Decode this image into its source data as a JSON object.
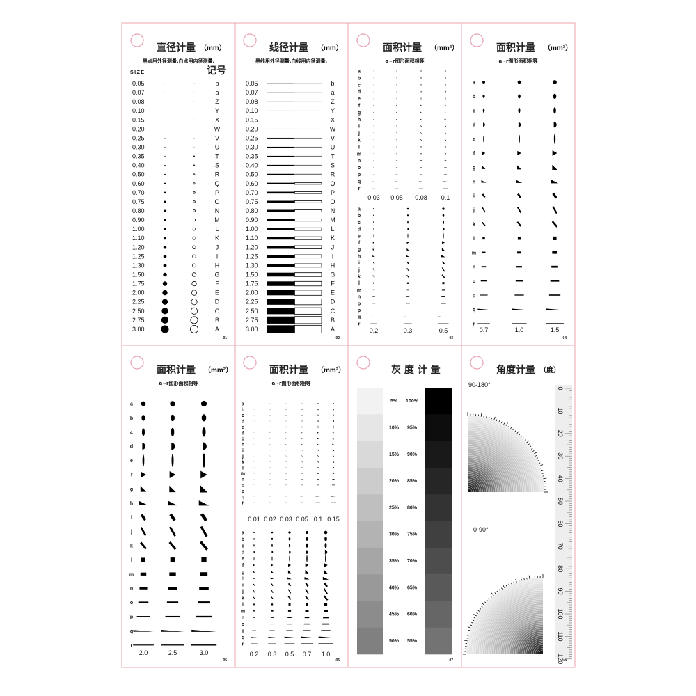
{
  "colors": {
    "frame": "#e8a4ac",
    "marker_circle": "#e8a0b0",
    "ink": "#000000"
  },
  "panels": [
    {
      "page": "01",
      "title": "直径计量",
      "unit": "（mm）",
      "subtitle": "黑点用外径测量,白点用内径测量.",
      "size_header": "SIZE",
      "code_header": "记号",
      "sizes": [
        "0.05",
        "0.07",
        "0.08",
        "0.10",
        "0.15",
        "0.20",
        "0.25",
        "0.30",
        "0.35",
        "0.40",
        "0.50",
        "0.60",
        "0.70",
        "0.75",
        "0.80",
        "0.90",
        "1.00",
        "1.10",
        "1.20",
        "1.25",
        "1.30",
        "1.50",
        "1.75",
        "2.00",
        "2.25",
        "2.50",
        "2.75",
        "3.00"
      ],
      "codes": [
        "b",
        "a",
        "Z",
        "Y",
        "X",
        "W",
        "V",
        "U",
        "T",
        "S",
        "R",
        "Q",
        "P",
        "O",
        "N",
        "M",
        "L",
        "K",
        "J",
        "I",
        "H",
        "G",
        "F",
        "E",
        "D",
        "C",
        "B",
        "A"
      ]
    },
    {
      "page": "02",
      "title": "线径计量",
      "unit": "（mm）",
      "subtitle": "黑线用外径测量,白线用内径测量.",
      "sizes": [
        "0.05",
        "0.07",
        "0.08",
        "0.10",
        "0.15",
        "0.20",
        "0.25",
        "0.30",
        "0.35",
        "0.40",
        "0.50",
        "0.60",
        "0.70",
        "0.75",
        "0.80",
        "0.90",
        "1.00",
        "1.10",
        "1.20",
        "1.25",
        "1.30",
        "1.50",
        "1.75",
        "2.00",
        "2.25",
        "2.50",
        "2.75",
        "3.00"
      ],
      "codes": [
        "b",
        "a",
        "Z",
        "Y",
        "X",
        "W",
        "V",
        "U",
        "T",
        "S",
        "R",
        "Q",
        "P",
        "O",
        "N",
        "M",
        "L",
        "K",
        "J",
        "I",
        "H",
        "G",
        "F",
        "E",
        "D",
        "C",
        "B",
        "A"
      ]
    },
    {
      "page": "03",
      "title": "面积计量",
      "unit": "（mm²）",
      "subtitle": "a~r图形面积相等",
      "letters": [
        "a",
        "b",
        "c",
        "d",
        "e",
        "f",
        "g",
        "h",
        "i",
        "j",
        "k",
        "l",
        "m",
        "n",
        "o",
        "p",
        "q",
        "r"
      ],
      "groups": [
        {
          "areas": [
            "0.03",
            "0.05",
            "0.08",
            "0.1"
          ]
        },
        {
          "areas": [
            "0.2",
            "0.3",
            "0.5"
          ]
        }
      ]
    },
    {
      "page": "04",
      "title": "面积计量",
      "unit": "（mm²）",
      "subtitle": "a~r图形面积相等",
      "letters": [
        "a",
        "b",
        "c",
        "d",
        "e",
        "f",
        "g",
        "h",
        "i",
        "j",
        "k",
        "l",
        "m",
        "n",
        "o",
        "p",
        "q",
        "r"
      ],
      "groups": [
        {
          "areas": [
            "0.7",
            "1.0",
            "1.5"
          ]
        }
      ]
    },
    {
      "page": "05",
      "title": "面积计量",
      "unit": "（mm²）",
      "subtitle": "a~r图形面积相等",
      "letters": [
        "a",
        "b",
        "c",
        "d",
        "e",
        "f",
        "g",
        "h",
        "i",
        "j",
        "k",
        "l",
        "m",
        "n",
        "o",
        "p",
        "q",
        "r"
      ],
      "groups": [
        {
          "areas": [
            "2.0",
            "2.5",
            "3.0"
          ]
        }
      ]
    },
    {
      "page": "06",
      "title": "面积计量",
      "unit": "（mm²）",
      "subtitle": "a~r图形面积相等",
      "letters": [
        "a",
        "b",
        "c",
        "d",
        "e",
        "f",
        "g",
        "h",
        "i",
        "j",
        "k",
        "l",
        "m",
        "n",
        "o",
        "p",
        "q",
        "r"
      ],
      "groups": [
        {
          "areas": [
            "0.01",
            "0.02",
            "0.03",
            "0.05",
            "0.1",
            "0.15"
          ]
        },
        {
          "areas": [
            "0.2",
            "0.3",
            "0.5",
            "0.7",
            "1.0"
          ]
        }
      ]
    },
    {
      "page": "07",
      "title": "灰 度 计 量",
      "light": [
        "5%",
        "10%",
        "15%",
        "20%",
        "25%",
        "30%",
        "35%",
        "40%",
        "45%",
        "50%"
      ],
      "dark": [
        "100%",
        "95%",
        "90%",
        "85%",
        "80%",
        "75%",
        "70%",
        "65%",
        "60%",
        "55%"
      ]
    },
    {
      "page": "08",
      "title": "角度计量",
      "unit": "（度）",
      "upper_label": "90-180°",
      "lower_label": "0-90°",
      "ruler_labels": [
        "0",
        "10",
        "20",
        "30",
        "40",
        "50",
        "60",
        "70",
        "80",
        "90",
        "100",
        "110",
        "120"
      ]
    }
  ]
}
